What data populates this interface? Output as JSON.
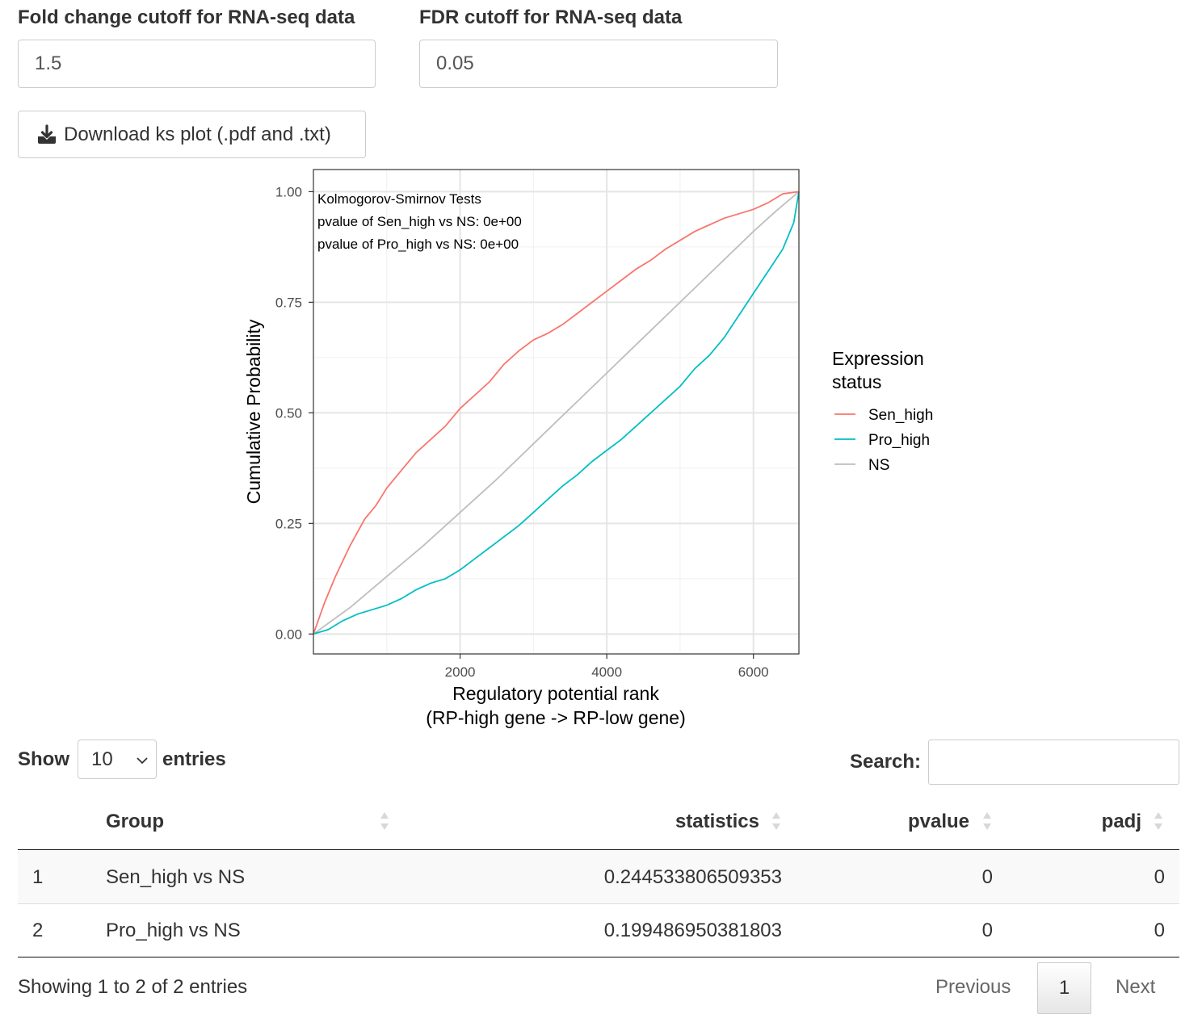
{
  "filters": {
    "fold_change": {
      "label": "Fold change cutoff for RNA-seq data",
      "value": "1.5"
    },
    "fdr": {
      "label": "FDR cutoff for RNA-seq data",
      "value": "0.05"
    }
  },
  "download_button": {
    "label": "Download ks plot (.pdf and .txt)",
    "icon": "download-icon"
  },
  "chart_data": {
    "type": "line",
    "xlabel": "Regulatory potential rank\n(RP-high gene -> RP-low gene)",
    "ylabel": "Cumulative Probability",
    "xlim": [
      0,
      6620
    ],
    "ylim": [
      -0.045,
      1.05
    ],
    "x_ticks": [
      2000,
      4000,
      6000
    ],
    "y_ticks": [
      0,
      0.25,
      0.5,
      0.75,
      1
    ],
    "x_tick_labels": [
      "2000",
      "4000",
      "6000"
    ],
    "y_tick_labels": [
      "0.00",
      "0.25",
      "0.50",
      "0.75",
      "1.00"
    ],
    "grid": true,
    "annotations": [
      "Kolmogorov-Smirnov Tests",
      "pvalue of Sen_high vs NS: 0e+00",
      "pvalue of Pro_high vs NS: 0e+00"
    ],
    "legend": {
      "title": "Expression\nstatus",
      "position": "right"
    },
    "series": [
      {
        "name": "Sen_high",
        "color": "#F8766D",
        "x": [
          0,
          150,
          300,
          500,
          700,
          850,
          1000,
          1200,
          1400,
          1600,
          1800,
          2000,
          2200,
          2400,
          2600,
          2800,
          3000,
          3200,
          3400,
          3600,
          3800,
          4000,
          4200,
          4400,
          4600,
          4800,
          5000,
          5200,
          5400,
          5600,
          5800,
          6000,
          6200,
          6400,
          6620
        ],
        "y": [
          0,
          0.07,
          0.13,
          0.2,
          0.26,
          0.29,
          0.33,
          0.37,
          0.41,
          0.44,
          0.47,
          0.51,
          0.54,
          0.57,
          0.61,
          0.64,
          0.665,
          0.68,
          0.7,
          0.725,
          0.75,
          0.775,
          0.8,
          0.825,
          0.845,
          0.87,
          0.89,
          0.91,
          0.925,
          0.94,
          0.95,
          0.96,
          0.975,
          0.995,
          1.0
        ]
      },
      {
        "name": "Pro_high",
        "color": "#00BFC4",
        "x": [
          0,
          200,
          400,
          600,
          800,
          1000,
          1200,
          1400,
          1600,
          1800,
          2000,
          2200,
          2400,
          2600,
          2800,
          3000,
          3200,
          3400,
          3600,
          3800,
          4000,
          4200,
          4400,
          4600,
          4800,
          5000,
          5200,
          5400,
          5600,
          5800,
          6000,
          6200,
          6400,
          6550,
          6620
        ],
        "y": [
          0,
          0.01,
          0.03,
          0.045,
          0.055,
          0.065,
          0.08,
          0.1,
          0.115,
          0.125,
          0.145,
          0.17,
          0.195,
          0.22,
          0.245,
          0.275,
          0.305,
          0.335,
          0.36,
          0.39,
          0.415,
          0.44,
          0.47,
          0.5,
          0.53,
          0.56,
          0.6,
          0.63,
          0.67,
          0.72,
          0.77,
          0.82,
          0.87,
          0.93,
          1.0
        ]
      },
      {
        "name": "NS",
        "color": "#BEBEBE",
        "x": [
          0,
          500,
          1000,
          1500,
          2000,
          2500,
          3000,
          3500,
          4000,
          4500,
          5000,
          5500,
          6000,
          6300,
          6620
        ],
        "y": [
          0,
          0.06,
          0.13,
          0.2,
          0.275,
          0.35,
          0.43,
          0.51,
          0.59,
          0.67,
          0.75,
          0.83,
          0.91,
          0.955,
          1.0
        ]
      }
    ]
  },
  "table_controls": {
    "show_label": "Show",
    "page_size": "10",
    "entries_label": "entries",
    "search_label": "Search:",
    "search_value": ""
  },
  "table": {
    "columns": [
      "Group",
      "statistics",
      "pvalue",
      "padj"
    ],
    "rows": [
      {
        "index": "1",
        "group": "Sen_high vs NS",
        "statistics": "0.244533806509353",
        "pvalue": "0",
        "padj": "0"
      },
      {
        "index": "2",
        "group": "Pro_high vs NS",
        "statistics": "0.199486950381803",
        "pvalue": "0",
        "padj": "0"
      }
    ],
    "info": "Showing 1 to 2 of 2 entries"
  },
  "pagination": {
    "previous": "Previous",
    "current": "1",
    "next": "Next"
  },
  "colors": {
    "stripe": "#f9f9f9",
    "border": "#dddddd",
    "dark_border": "#111111"
  }
}
